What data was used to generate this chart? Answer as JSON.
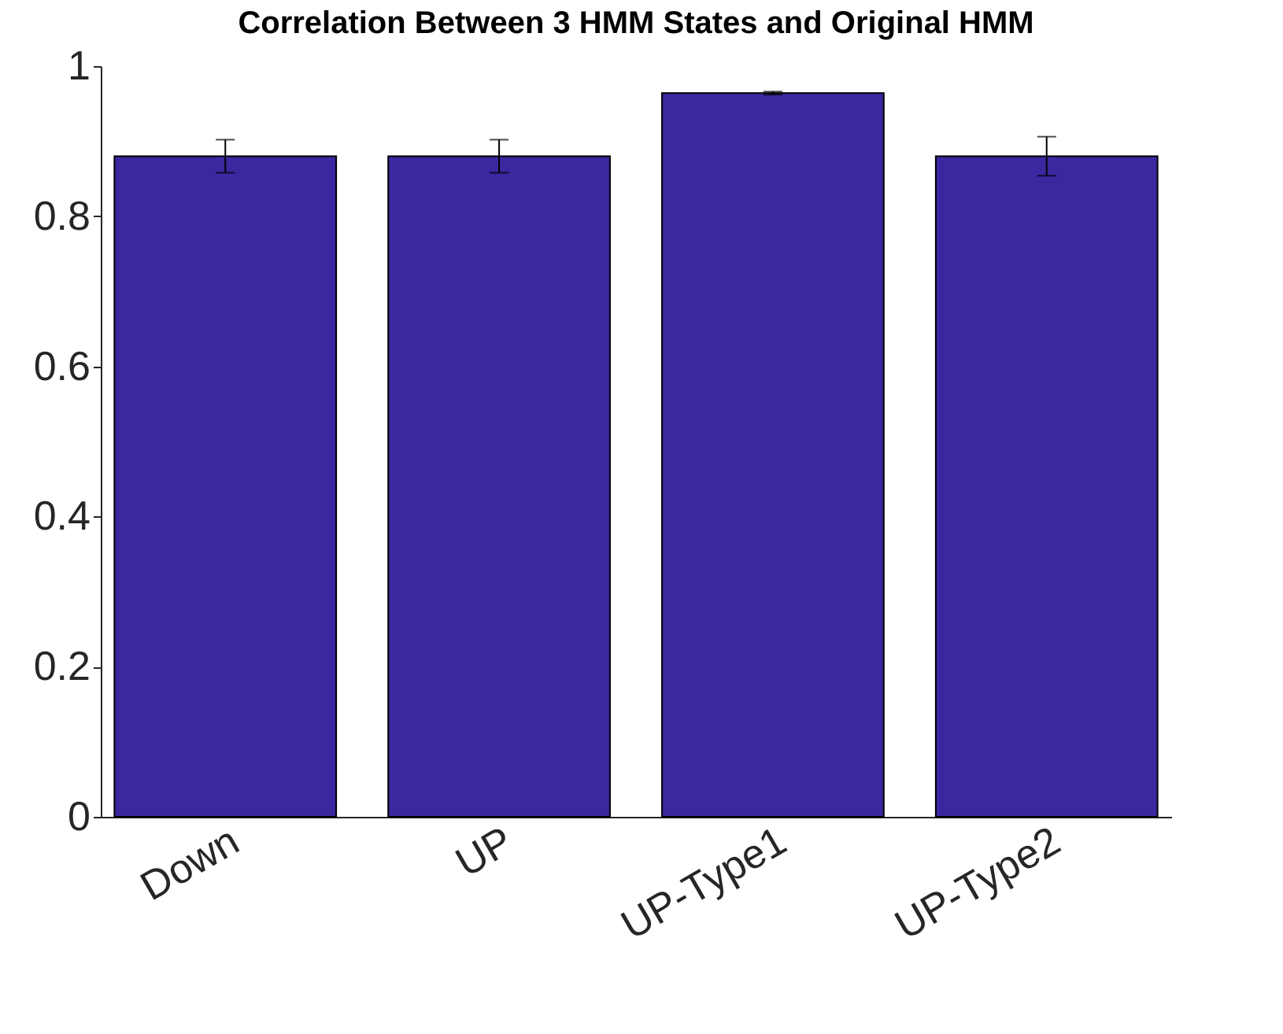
{
  "chart_data": {
    "type": "bar",
    "title": "Correlation Between 3 HMM States and Original HMM",
    "categories": [
      "Down",
      "UP",
      "UP-Type1",
      "UP-Type2"
    ],
    "values": [
      0.88,
      0.88,
      0.964,
      0.88
    ],
    "errors": [
      0.022,
      0.022,
      0.002,
      0.026
    ],
    "color": "#3a28a0",
    "ylim": [
      0,
      1
    ],
    "yticks": [
      0,
      0.2,
      0.4,
      0.6,
      0.8,
      1
    ],
    "grid": false
  }
}
